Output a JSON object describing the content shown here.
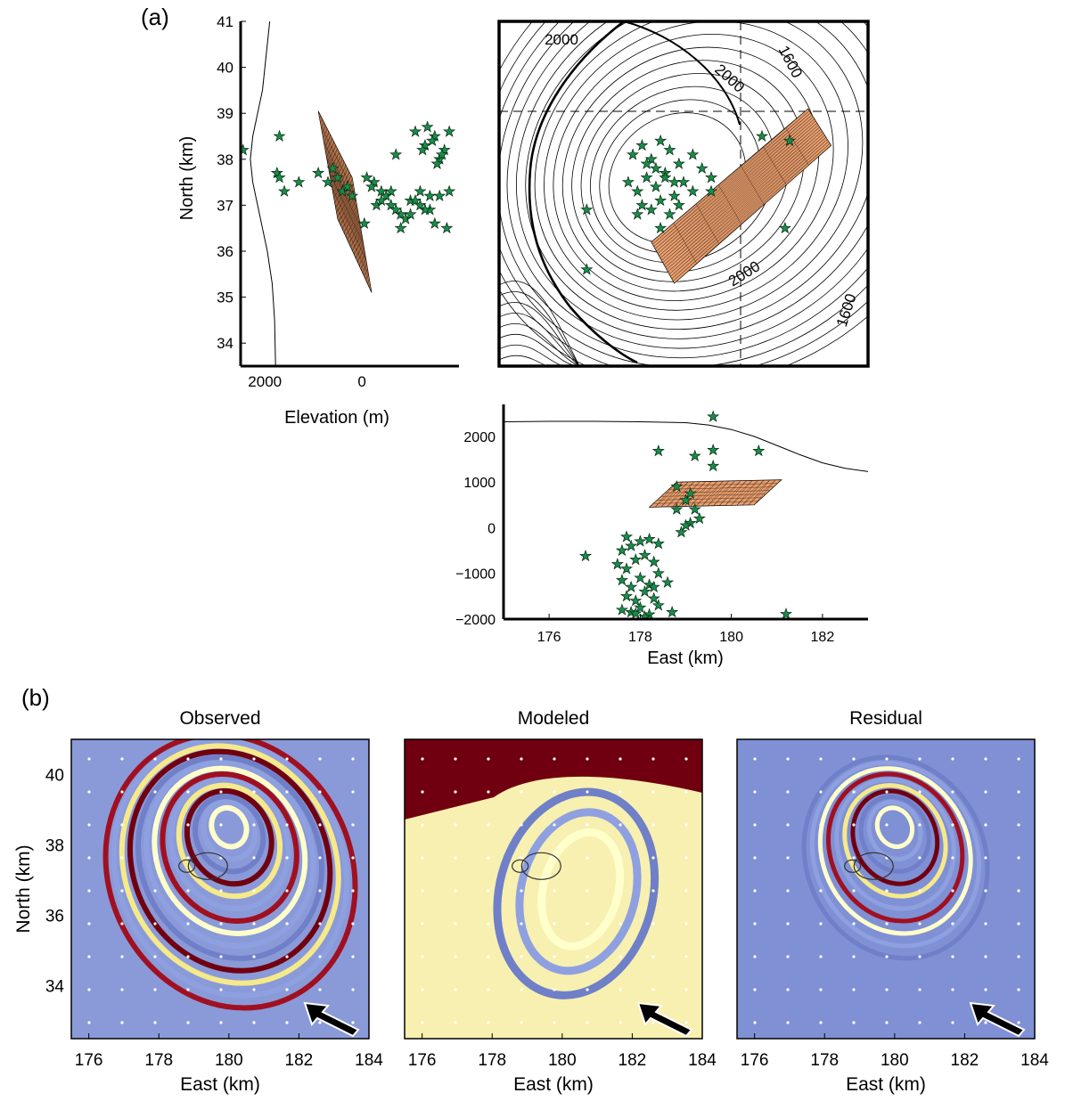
{
  "labels": {
    "part_a": "(a)",
    "part_b": "(b)"
  },
  "chart_data": [
    {
      "type": "scatter",
      "panel": "a-north-elevation",
      "xlabel": "Elevation (m)",
      "ylabel": "North (km)",
      "xlim": [
        2500,
        -2000
      ],
      "ylim": [
        33.5,
        41
      ],
      "xticks": [
        "2000",
        "0"
      ],
      "yticks": [
        "34",
        "35",
        "36",
        "37",
        "38",
        "39",
        "40",
        "41"
      ],
      "marker": "star",
      "marker_color": "#1a8c4a",
      "fault_color": "#e8a070",
      "fault_plane": {
        "elevation": [
          900,
          200,
          -200,
          500
        ],
        "north": [
          39.05,
          37.6,
          35.1,
          36.7
        ]
      },
      "topography": {
        "elevation": [
          1900,
          1950,
          2000,
          2050,
          2150,
          2250,
          2300,
          2250,
          2150,
          2050,
          1950,
          1850,
          1800,
          1780
        ],
        "north": [
          41,
          40.5,
          40,
          39.5,
          39,
          38.5,
          38,
          37.5,
          37,
          36.5,
          36,
          35.3,
          34.5,
          33.5
        ]
      },
      "events": {
        "elevation": [
          2450,
          1700,
          1750,
          1600,
          1700,
          1300,
          900,
          600,
          400,
          200,
          -50,
          -250,
          -400,
          -600,
          -800,
          -1000,
          -1200,
          -1400,
          -1600,
          -1750,
          -1800,
          -1500,
          -1300,
          -1100,
          -900,
          -700,
          -500,
          -300,
          -100,
          300,
          500,
          700,
          -700,
          -1100,
          -1300,
          -1500,
          -1700,
          -1800,
          -1600,
          -1400,
          -1200,
          -1000,
          -800,
          -600,
          -400,
          -200,
          -1250,
          -1450,
          -1650,
          -1350,
          -1550
        ],
        "north": [
          38.2,
          38.5,
          37.7,
          37.3,
          37.6,
          37.5,
          37.7,
          37.8,
          37.3,
          37.2,
          36.6,
          37.5,
          37.3,
          37.0,
          36.8,
          37.1,
          37.3,
          36.9,
          37.2,
          36.5,
          37.3,
          36.6,
          36.9,
          37.1,
          36.7,
          36.9,
          37.2,
          37.0,
          37.6,
          37.4,
          37.6,
          37.5,
          38.1,
          38.6,
          38.3,
          38.5,
          38.2,
          38.6,
          38.0,
          37.2,
          37.0,
          36.8,
          36.5,
          37.3,
          37.1,
          37.4,
          38.2,
          38.4,
          38.1,
          38.7,
          37.9
        ]
      }
    },
    {
      "type": "scatter",
      "panel": "a-map",
      "xlim": [
        175,
        183
      ],
      "ylim": [
        33.5,
        41
      ],
      "contour_labels": [
        "2000",
        "2000",
        "1600",
        "2000",
        "1600"
      ],
      "crosshair": {
        "east": 180.2,
        "north": 39.05
      },
      "marker": "star",
      "marker_color": "#1a8c4a",
      "fault_color": "#e8a070",
      "fault_plane": {
        "east": [
          181.7,
          182.2,
          178.8,
          178.3
        ],
        "north": [
          39.1,
          38.3,
          35.3,
          36.2
        ]
      },
      "events": {
        "east": [
          180.7,
          181.3,
          176.9,
          176.9,
          181.2,
          177.9,
          178.1,
          178.3,
          178.5,
          178.7,
          178.9,
          179.2,
          179.4,
          179.6,
          177.8,
          178.0,
          178.2,
          178.4,
          178.6,
          178.8,
          179.0,
          179.2,
          178.1,
          178.3,
          178.5,
          178.7,
          178.9,
          178.2,
          178.4,
          178.6,
          178.8,
          179.6,
          178.0,
          178.5
        ],
        "north": [
          38.5,
          38.4,
          36.9,
          35.6,
          36.5,
          38.1,
          38.3,
          38.0,
          38.4,
          38.2,
          37.9,
          38.1,
          37.8,
          37.6,
          37.5,
          37.3,
          37.6,
          37.4,
          37.7,
          37.2,
          37.5,
          37.3,
          37.0,
          36.9,
          37.1,
          36.8,
          37.0,
          37.9,
          37.8,
          37.6,
          37.5,
          37.3,
          36.8,
          36.5
        ]
      }
    },
    {
      "type": "scatter",
      "panel": "a-east-depth",
      "xlabel": "East (km)",
      "xlim": [
        175,
        183
      ],
      "ylim": [
        -2000,
        2700
      ],
      "xticks": [
        "176",
        "178",
        "180",
        "182"
      ],
      "yticks": [
        "−2000",
        "−1000",
        "0",
        "1000",
        "2000"
      ],
      "marker": "star",
      "marker_color": "#1a8c4a",
      "fault_color": "#e8a070",
      "fault_plane": {
        "east": [
          178.8,
          181.1,
          180.5,
          178.2
        ],
        "elevation": [
          1000,
          1050,
          500,
          450
        ]
      },
      "topography": {
        "east": [
          175,
          176,
          177,
          178,
          179,
          179.5,
          180,
          180.5,
          181,
          181.5,
          182,
          182.5,
          183
        ],
        "elevation": [
          2320,
          2330,
          2330,
          2320,
          2300,
          2250,
          2150,
          2000,
          1800,
          1600,
          1420,
          1300,
          1230
        ]
      },
      "events": {
        "east": [
          179.6,
          178.4,
          179.2,
          179.6,
          179.6,
          180.6,
          178.8,
          179.0,
          179.2,
          179.1,
          178.9,
          179.3,
          179.0,
          178.8,
          179.1,
          176.8,
          181.2,
          177.7,
          177.6,
          177.8,
          178.0,
          178.2,
          178.4,
          177.5,
          177.7,
          177.9,
          178.1,
          178.3,
          177.6,
          177.8,
          178.0,
          178.2,
          178.4,
          177.7,
          177.9,
          178.1,
          178.3,
          177.6,
          177.8,
          178.0,
          178.2,
          178.4,
          178.1,
          177.9,
          178.3,
          178.6,
          178.7
        ],
        "elevation": [
          2430,
          1680,
          1570,
          1700,
          1350,
          1680,
          900,
          600,
          400,
          100,
          -100,
          200,
          50,
          400,
          750,
          -620,
          -1890,
          -200,
          -500,
          -400,
          -300,
          -250,
          -350,
          -800,
          -900,
          -700,
          -600,
          -750,
          -1150,
          -1300,
          -1100,
          -1250,
          -1000,
          -1500,
          -1600,
          -1400,
          -1550,
          -1800,
          -1850,
          -1750,
          -1900,
          -1700,
          -1950,
          -1880,
          -1300,
          -1200,
          -1850
        ]
      }
    },
    {
      "type": "heatmap",
      "panel": "b-observed",
      "title": "Observed",
      "xlabel": "East (km)",
      "ylabel": "North (km)",
      "xlim": [
        175.5,
        184
      ],
      "ylim": [
        32.5,
        41
      ],
      "xticks": [
        "176",
        "178",
        "180",
        "182",
        "184"
      ],
      "yticks": [
        "34",
        "36",
        "38",
        "40"
      ],
      "colormap": [
        "#ffffcc",
        "#f6e98a",
        "#8fa0e0",
        "#6f7fc8",
        "#a01020",
        "#700010"
      ],
      "fringe_center": {
        "east": 180.0,
        "north": 38.6
      },
      "fringe_count": 14
    },
    {
      "type": "heatmap",
      "panel": "b-modeled",
      "title": "Modeled",
      "xlabel": "East (km)",
      "xlim": [
        175.5,
        184
      ],
      "ylim": [
        32.5,
        41
      ],
      "xticks": [
        "176",
        "178",
        "180",
        "182",
        "184"
      ],
      "colormap": [
        "#ffffcc",
        "#f6e98a",
        "#8fa0e0",
        "#6f7fc8",
        "#a01020",
        "#700010"
      ],
      "fringe_center": {
        "east": 180.6,
        "north": 36.8
      },
      "fringe_count": 3
    },
    {
      "type": "heatmap",
      "panel": "b-residual",
      "title": "Residual",
      "xlabel": "East (km)",
      "xlim": [
        175.5,
        184
      ],
      "ylim": [
        32.5,
        41
      ],
      "xticks": [
        "176",
        "178",
        "180",
        "182",
        "184"
      ],
      "colormap": [
        "#ffffcc",
        "#f6e98a",
        "#8fa0e0",
        "#6f7fc8",
        "#a01020",
        "#700010"
      ],
      "fringe_center": {
        "east": 180.0,
        "north": 38.6
      },
      "fringe_count": 10
    }
  ]
}
